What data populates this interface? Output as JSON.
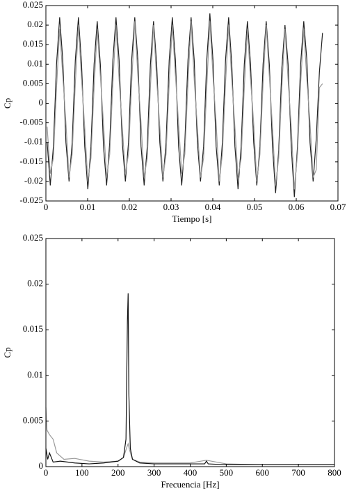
{
  "chart_data": [
    {
      "type": "line",
      "xlabel": "Tiempo [s]",
      "ylabel": "Cp",
      "xlim": [
        0,
        0.07
      ],
      "ylim": [
        -0.025,
        0.025
      ],
      "xticks": [
        0,
        0.01,
        0.02,
        0.03,
        0.04,
        0.05,
        0.06,
        0.07
      ],
      "yticks": [
        -0.025,
        -0.02,
        -0.015,
        -0.01,
        -0.005,
        0,
        0.005,
        0.01,
        0.015,
        0.02,
        0.025
      ],
      "x": [
        0.0003,
        0.00105,
        0.0018,
        0.00255,
        0.0033,
        0.00405,
        0.0048,
        0.00555,
        0.0063,
        0.00705,
        0.0078,
        0.00855,
        0.0093,
        0.01005,
        0.0108,
        0.01155,
        0.0123,
        0.01305,
        0.0138,
        0.01455,
        0.0153,
        0.01605,
        0.0168,
        0.01755,
        0.0183,
        0.01905,
        0.0198,
        0.02055,
        0.0213,
        0.02205,
        0.0228,
        0.02355,
        0.0243,
        0.02505,
        0.0258,
        0.02655,
        0.0273,
        0.02805,
        0.0288,
        0.02955,
        0.0303,
        0.03105,
        0.0318,
        0.03255,
        0.0333,
        0.03405,
        0.0348,
        0.03555,
        0.0363,
        0.03705,
        0.0378,
        0.03855,
        0.0393,
        0.04005,
        0.0408,
        0.04155,
        0.0423,
        0.04305,
        0.0438,
        0.04455,
        0.0453,
        0.04605,
        0.0468,
        0.04755,
        0.0483,
        0.04905,
        0.0498,
        0.05055,
        0.0513,
        0.05205,
        0.0528,
        0.05355,
        0.0543,
        0.05505,
        0.0558,
        0.05655,
        0.0573,
        0.05805,
        0.0588,
        0.05955,
        0.0603,
        0.06105,
        0.0618,
        0.06255,
        0.0633,
        0.06405,
        0.0648,
        0.06555,
        0.0663
      ],
      "series": [
        {
          "color": "#222222",
          "values": [
            -0.01,
            -0.021,
            -0.011,
            0.01,
            0.022,
            0.011,
            -0.01,
            -0.02,
            -0.01,
            0.011,
            0.022,
            0.01,
            -0.011,
            -0.022,
            -0.011,
            0.01,
            0.021,
            0.01,
            -0.011,
            -0.021,
            -0.01,
            0.011,
            0.022,
            0.011,
            -0.01,
            -0.02,
            -0.01,
            0.011,
            0.022,
            0.011,
            -0.011,
            -0.021,
            -0.011,
            0.01,
            0.021,
            0.01,
            -0.01,
            -0.02,
            -0.01,
            0.011,
            0.022,
            0.011,
            -0.011,
            -0.021,
            -0.01,
            0.011,
            0.022,
            0.011,
            -0.01,
            -0.02,
            -0.011,
            0.011,
            0.023,
            0.011,
            -0.011,
            -0.021,
            -0.01,
            0.011,
            0.022,
            0.01,
            -0.011,
            -0.022,
            -0.011,
            0.01,
            0.021,
            0.01,
            -0.01,
            -0.021,
            -0.011,
            0.01,
            0.021,
            0.01,
            -0.011,
            -0.023,
            -0.012,
            0.009,
            0.02,
            0.01,
            -0.011,
            -0.024,
            -0.011,
            0.01,
            0.021,
            0.011,
            -0.01,
            -0.02,
            -0.009,
            0.008,
            0.018
          ]
        },
        {
          "color": "#999999",
          "values": [
            -0.006,
            -0.018,
            -0.014,
            0.004,
            0.019,
            0.007,
            -0.005,
            -0.019,
            -0.013,
            0.005,
            0.02,
            0.006,
            -0.006,
            -0.02,
            -0.014,
            0.004,
            0.019,
            0.007,
            -0.005,
            -0.019,
            -0.013,
            0.005,
            0.02,
            0.006,
            -0.006,
            -0.018,
            -0.013,
            0.005,
            0.021,
            0.007,
            -0.005,
            -0.019,
            -0.014,
            0.004,
            0.02,
            0.006,
            -0.006,
            -0.019,
            -0.013,
            0.005,
            0.02,
            0.007,
            -0.005,
            -0.018,
            -0.013,
            0.005,
            0.021,
            0.006,
            -0.006,
            -0.019,
            -0.014,
            0.004,
            0.021,
            0.007,
            -0.005,
            -0.02,
            -0.013,
            0.005,
            0.02,
            0.006,
            -0.006,
            -0.019,
            -0.014,
            0.004,
            0.019,
            0.006,
            -0.005,
            -0.02,
            -0.013,
            0.005,
            0.02,
            0.007,
            -0.006,
            -0.021,
            -0.014,
            0.004,
            0.019,
            0.006,
            -0.006,
            -0.022,
            -0.013,
            0.005,
            0.019,
            0.006,
            -0.005,
            -0.019,
            -0.017,
            0.004,
            0.005
          ]
        }
      ]
    },
    {
      "type": "line",
      "xlabel": "Frecuencia [Hz]",
      "ylabel": "Cp",
      "xlim": [
        0,
        800
      ],
      "ylim": [
        0,
        0.025
      ],
      "xticks": [
        0,
        100,
        200,
        300,
        400,
        500,
        600,
        700,
        800
      ],
      "yticks": [
        0,
        0.005,
        0.01,
        0.015,
        0.02,
        0.025
      ],
      "series": [
        {
          "color": "#999999",
          "x": [
            0,
            3,
            10,
            20,
            30,
            50,
            80,
            120,
            160,
            200,
            215,
            225,
            228,
            232,
            240,
            260,
            300,
            400,
            445,
            500,
            600,
            800
          ],
          "values": [
            0.0065,
            0.004,
            0.0035,
            0.003,
            0.0015,
            0.0008,
            0.0009,
            0.0006,
            0.0005,
            0.0006,
            0.001,
            0.0022,
            0.0025,
            0.0018,
            0.0008,
            0.0005,
            0.0004,
            0.0004,
            0.0007,
            0.0003,
            0.0002,
            0.0002
          ]
        },
        {
          "color": "#111111",
          "x": [
            0,
            5,
            10,
            20,
            40,
            80,
            120,
            160,
            200,
            215,
            222,
            226,
            228,
            230,
            234,
            240,
            260,
            300,
            400,
            440,
            445,
            450,
            500,
            600,
            700,
            800
          ],
          "values": [
            0.002,
            0.0008,
            0.0015,
            0.0005,
            0.0006,
            0.0004,
            0.0003,
            0.0004,
            0.0006,
            0.001,
            0.003,
            0.016,
            0.019,
            0.008,
            0.002,
            0.0008,
            0.0004,
            0.0003,
            0.0003,
            0.0003,
            0.0006,
            0.0003,
            0.0002,
            0.0002,
            0.0002,
            0.0002
          ]
        }
      ]
    }
  ]
}
